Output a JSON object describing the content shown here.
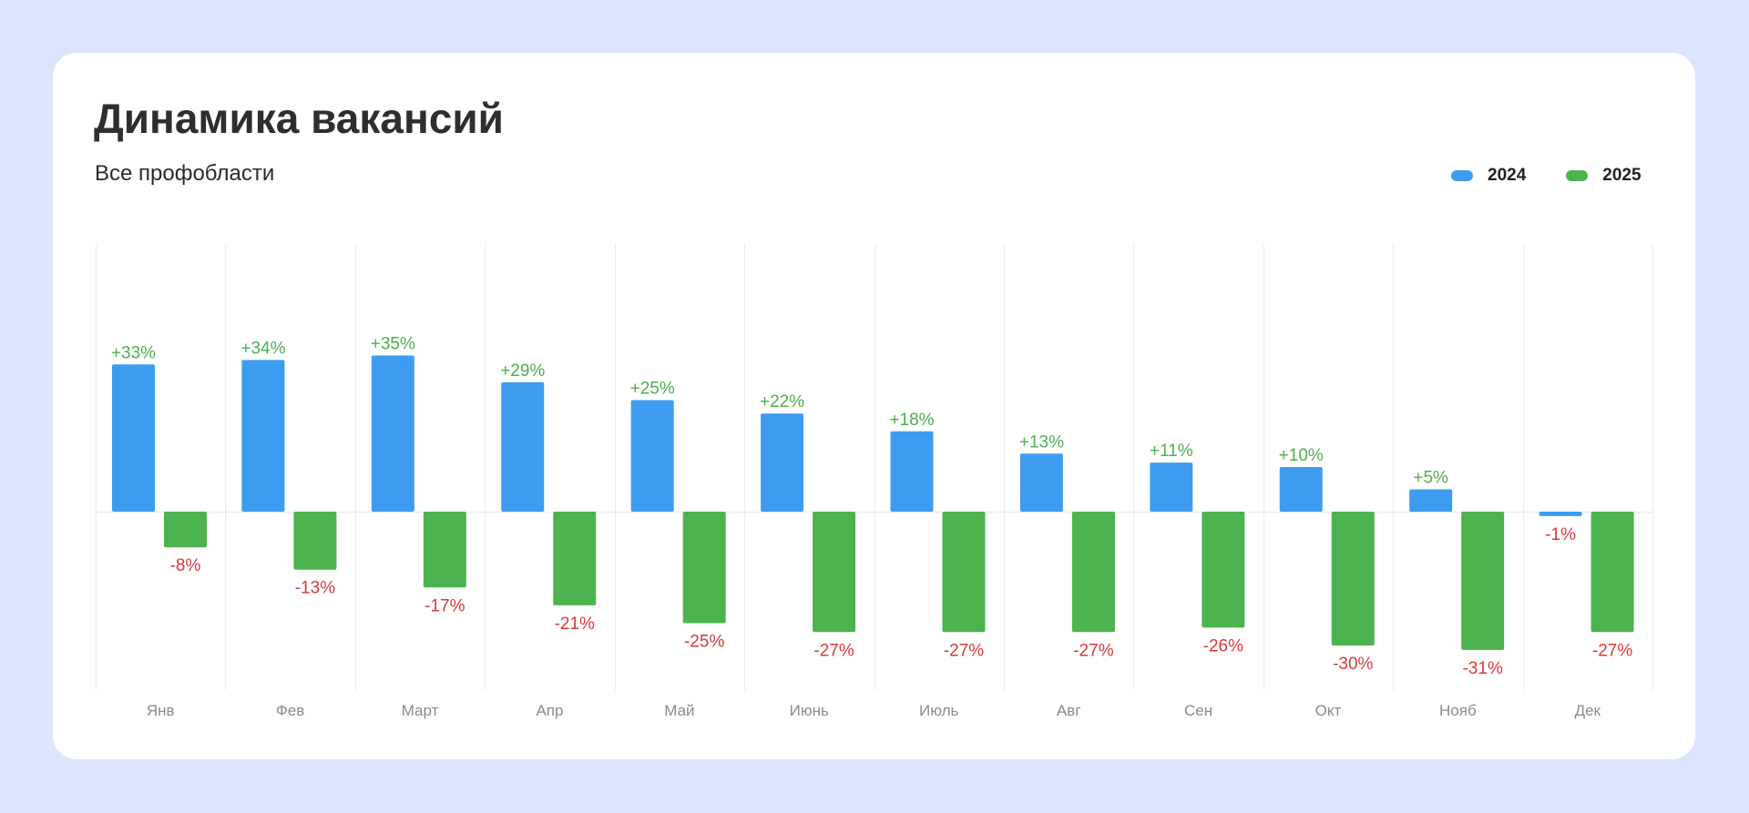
{
  "chart_data": {
    "type": "bar",
    "title": "Динамика вакансий",
    "subtitle": "Все профобласти",
    "xlabel": "",
    "ylabel": "",
    "categories": [
      "Янв",
      "Фев",
      "Март",
      "Апр",
      "Май",
      "Июнь",
      "Июль",
      "Авг",
      "Сен",
      "Окт",
      "Нояб",
      "Дек"
    ],
    "series": [
      {
        "name": "2024",
        "color": "#3d9cf0",
        "values": [
          33,
          34,
          35,
          29,
          25,
          22,
          18,
          13,
          11,
          10,
          5,
          -1
        ],
        "labels": [
          "+33%",
          "+34%",
          "+35%",
          "+29%",
          "+25%",
          "+22%",
          "+18%",
          "+13%",
          "+11%",
          "+10%",
          "+5%",
          "-1%"
        ]
      },
      {
        "name": "2025",
        "color": "#4cb34f",
        "values": [
          -8,
          -13,
          -17,
          -21,
          -25,
          -27,
          -27,
          -27,
          -26,
          -30,
          -31,
          -27
        ],
        "labels": [
          "-8%",
          "-13%",
          "-17%",
          "-21%",
          "-25%",
          "-27%",
          "-27%",
          "-27%",
          "-26%",
          "-30%",
          "-31%",
          "-27%"
        ]
      }
    ],
    "label_colors": {
      "positive": "#4caf50",
      "negative": "#d93838"
    },
    "ylim": [
      -40,
      60
    ],
    "grid": true,
    "legend": "top-right"
  }
}
